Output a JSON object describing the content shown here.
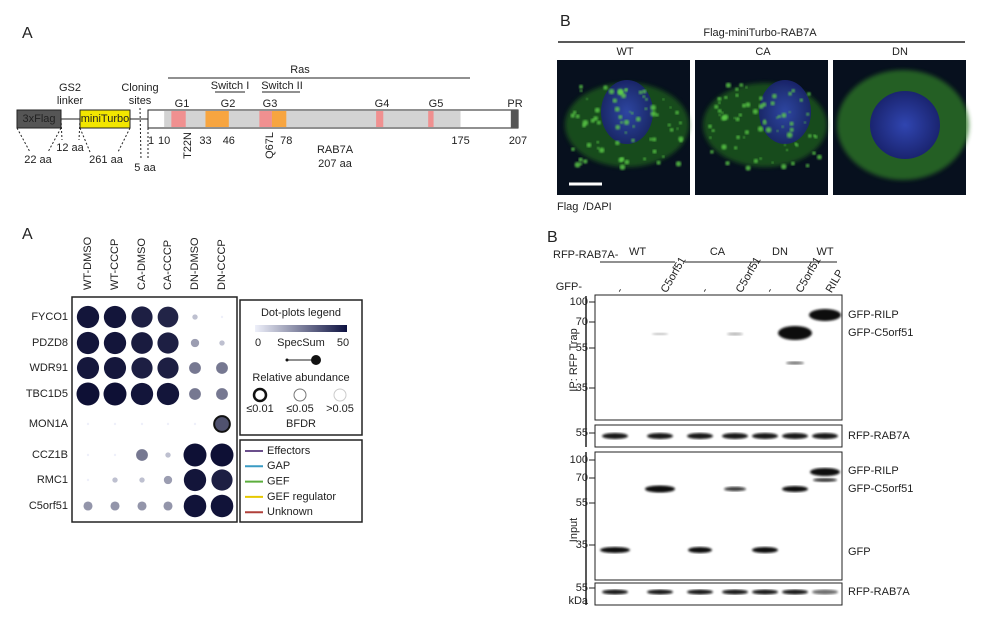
{
  "domain_map": {
    "label": "A",
    "tags": [
      "3xFlag",
      "miniTurbo"
    ],
    "linker": [
      "GS2",
      "linker"
    ],
    "cloning": [
      "Cloning",
      "sites"
    ],
    "ras": "Ras",
    "switches": [
      "Switch I",
      "Switch II"
    ],
    "motifs": [
      "G1",
      "G2",
      "G3",
      "G4",
      "G5",
      "PR"
    ],
    "residues": [
      1,
      10,
      33,
      46,
      78,
      175,
      207
    ],
    "mutations": [
      "T22N",
      "Q67L"
    ],
    "lengths": [
      "22 aa",
      "12 aa",
      "261 aa",
      "5 aa"
    ],
    "protein": "RAB7A",
    "protein_length": "207 aa"
  },
  "imaging": {
    "label": "B",
    "title": "Flag-miniTurbo-RAB7A",
    "conditions": [
      "WT",
      "CA",
      "DN"
    ],
    "stain": [
      "Flag",
      "/DAPI"
    ]
  },
  "dot_plot": {
    "label": "A",
    "columns": [
      "WT-DMSO",
      "WT-CCCP",
      "CA-DMSO",
      "CA-CCCP",
      "DN-DMSO",
      "DN-CCCP"
    ],
    "rows": [
      {
        "name": "FYCO1",
        "category": 0,
        "specsum": [
          45,
          45,
          40,
          38,
          1,
          0
        ]
      },
      {
        "name": "PDZD8",
        "category": 0,
        "specsum": [
          45,
          45,
          42,
          40,
          4,
          1
        ]
      },
      {
        "name": "WDR91",
        "category": 0,
        "specsum": [
          44,
          44,
          40,
          40,
          10,
          10
        ]
      },
      {
        "name": "TBC1D5",
        "category": 1,
        "specsum": [
          48,
          48,
          45,
          45,
          10,
          10
        ]
      },
      {
        "name": "MON1A",
        "category": 2,
        "specsum": [
          0,
          0,
          0,
          0,
          0,
          20
        ]
      },
      {
        "name": "CCZ1B",
        "category": 2,
        "specsum": [
          0,
          0,
          10,
          1,
          48,
          48
        ]
      },
      {
        "name": "RMC1",
        "category": 3,
        "specsum": [
          0,
          1,
          1,
          4,
          45,
          40
        ]
      },
      {
        "name": "C5orf51",
        "category": 4,
        "specsum": [
          5,
          5,
          5,
          5,
          46,
          46
        ]
      }
    ],
    "legend": {
      "title": "Dot-plots legend",
      "scale": [
        0,
        50
      ],
      "scale_label": "SpecSum",
      "abundance": "Relative abundance",
      "thresholds": [
        "≤0.01",
        "≤0.05",
        ">0.05"
      ],
      "bfdr": "BFDR",
      "categories": [
        {
          "name": "Effectors",
          "color": "#6b4f8c"
        },
        {
          "name": "GAP",
          "color": "#3a9bc4"
        },
        {
          "name": "GEF",
          "color": "#5cae3c"
        },
        {
          "name": "GEF regulator",
          "color": "#e6c800"
        },
        {
          "name": "Unknown",
          "color": "#b0403a"
        }
      ]
    }
  },
  "western_blot": {
    "label": "B",
    "bait": "RFP-RAB7A-",
    "groups": [
      "WT",
      "CA",
      "DN",
      "WT"
    ],
    "prey": "GFP-",
    "lanes": [
      "-",
      "C5orf51",
      "-",
      "C5orf51",
      "-",
      "C5orf51",
      "RILP"
    ],
    "ip": {
      "title": "IP: RFP Trap",
      "markers": [
        100,
        70,
        55,
        35
      ],
      "bands": [
        "GFP-RILP",
        "GFP-C5orf51"
      ]
    },
    "ip_bait": {
      "markers": [
        55
      ],
      "band": "RFP-RAB7A"
    },
    "input": {
      "title": "Input",
      "markers": [
        100,
        70,
        55,
        35
      ],
      "bands": [
        "GFP-RILP",
        "GFP-C5orf51",
        "GFP"
      ]
    },
    "input_bait": {
      "markers": [
        55
      ],
      "unit": "kDa",
      "band": "RFP-RAB7A"
    }
  }
}
